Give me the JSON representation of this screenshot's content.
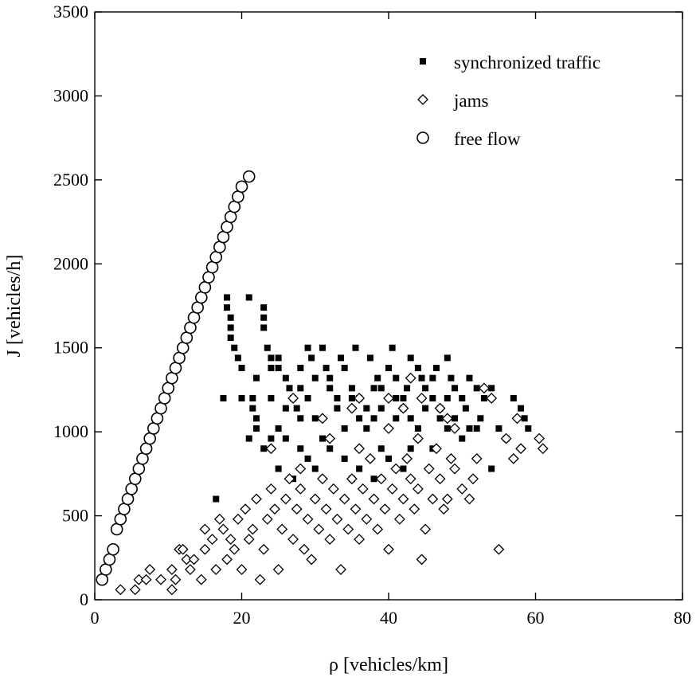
{
  "chart_data": {
    "type": "scatter",
    "title": "",
    "xlabel": "ρ [vehicles/km]",
    "ylabel": "J [vehicles/h]",
    "xlim": [
      0,
      80
    ],
    "ylim": [
      0,
      3500
    ],
    "x_ticks": [
      0,
      20,
      40,
      60,
      80
    ],
    "y_ticks": [
      0,
      500,
      1000,
      1500,
      2000,
      2500,
      3000,
      3500
    ],
    "grid": false,
    "legend_position": "top-right",
    "series": [
      {
        "name": "synchronized traffic",
        "marker": "filled-square",
        "points": [
          [
            16.5,
            600
          ],
          [
            17.5,
            1200
          ],
          [
            18,
            1800
          ],
          [
            18,
            1740
          ],
          [
            18.5,
            1680
          ],
          [
            18.5,
            1620
          ],
          [
            18.5,
            1560
          ],
          [
            19,
            1500
          ],
          [
            19.5,
            1440
          ],
          [
            20,
            1380
          ],
          [
            21,
            1800
          ],
          [
            21.5,
            1200
          ],
          [
            21.5,
            1140
          ],
          [
            22,
            1080
          ],
          [
            22,
            1320
          ],
          [
            23,
            1740
          ],
          [
            23,
            1680
          ],
          [
            23,
            1620
          ],
          [
            23.5,
            1500
          ],
          [
            24,
            1440
          ],
          [
            24,
            1380
          ],
          [
            25,
            1440
          ],
          [
            25,
            1380
          ],
          [
            26,
            1320
          ],
          [
            26.5,
            1260
          ],
          [
            27,
            1200
          ],
          [
            27.5,
            1140
          ],
          [
            28,
            1080
          ],
          [
            28,
            1380
          ],
          [
            29,
            1500
          ],
          [
            29.5,
            1440
          ],
          [
            30,
            1320
          ],
          [
            31,
            1500
          ],
          [
            31.5,
            1380
          ],
          [
            32,
            1260
          ],
          [
            33,
            1200
          ],
          [
            33.5,
            1440
          ],
          [
            34,
            1380
          ],
          [
            35,
            1260
          ],
          [
            35.5,
            1500
          ],
          [
            36,
            1200
          ],
          [
            37,
            1140
          ],
          [
            37.5,
            1440
          ],
          [
            38,
            1080
          ],
          [
            38.5,
            1320
          ],
          [
            39,
            1260
          ],
          [
            40,
            1380
          ],
          [
            40.5,
            1500
          ],
          [
            41,
            1200
          ],
          [
            42,
            1140
          ],
          [
            42.5,
            1260
          ],
          [
            43,
            1080
          ],
          [
            44,
            1380
          ],
          [
            44.5,
            1320
          ],
          [
            45,
            1260
          ],
          [
            46,
            1200
          ],
          [
            46.5,
            1380
          ],
          [
            47,
            1140
          ],
          [
            48,
            1440
          ],
          [
            48.5,
            1320
          ],
          [
            49,
            1080
          ],
          [
            50,
            1200
          ],
          [
            50.5,
            1140
          ],
          [
            51,
            1320
          ],
          [
            52,
            1260
          ],
          [
            52.5,
            1080
          ],
          [
            53,
            1200
          ],
          [
            54,
            1260
          ],
          [
            55,
            1020
          ],
          [
            56,
            960
          ],
          [
            57,
            1200
          ],
          [
            58,
            1140
          ],
          [
            58.5,
            1080
          ],
          [
            59,
            1020
          ],
          [
            21,
            960
          ],
          [
            22,
            1020
          ],
          [
            23,
            900
          ],
          [
            24,
            960
          ],
          [
            25,
            1020
          ],
          [
            26,
            960
          ],
          [
            28,
            900
          ],
          [
            29,
            840
          ],
          [
            30,
            780
          ],
          [
            31,
            960
          ],
          [
            32,
            900
          ],
          [
            34,
            840
          ],
          [
            36,
            780
          ],
          [
            38,
            720
          ],
          [
            40,
            840
          ],
          [
            42,
            780
          ],
          [
            44,
            960
          ],
          [
            46,
            900
          ],
          [
            48,
            1020
          ],
          [
            50,
            960
          ],
          [
            52,
            1020
          ],
          [
            54,
            780
          ],
          [
            26,
            1140
          ],
          [
            29,
            1200
          ],
          [
            33,
            1140
          ],
          [
            36,
            1080
          ],
          [
            39,
            1140
          ],
          [
            42,
            1200
          ],
          [
            45,
            1140
          ],
          [
            48,
            1200
          ],
          [
            30,
            1080
          ],
          [
            34,
            1020
          ],
          [
            37,
            1020
          ],
          [
            41,
            1080
          ],
          [
            44,
            1020
          ],
          [
            47,
            1080
          ],
          [
            51,
            1020
          ],
          [
            24,
            1200
          ],
          [
            28,
            1260
          ],
          [
            32,
            1320
          ],
          [
            35,
            1200
          ],
          [
            38,
            1260
          ],
          [
            41,
            1320
          ],
          [
            43,
            1440
          ],
          [
            46,
            1320
          ],
          [
            49,
            1260
          ],
          [
            25,
            780
          ],
          [
            27,
            720
          ],
          [
            35,
            720
          ],
          [
            39,
            900
          ],
          [
            43,
            900
          ],
          [
            20,
            1200
          ]
        ]
      },
      {
        "name": "jams",
        "marker": "open-diamond",
        "points": [
          [
            3.5,
            60
          ],
          [
            5.5,
            60
          ],
          [
            6,
            120
          ],
          [
            7,
            120
          ],
          [
            7.5,
            180
          ],
          [
            9,
            120
          ],
          [
            10.5,
            60
          ],
          [
            10.5,
            180
          ],
          [
            11,
            120
          ],
          [
            11.5,
            300
          ],
          [
            12,
            300
          ],
          [
            12.5,
            240
          ],
          [
            13,
            180
          ],
          [
            13.5,
            240
          ],
          [
            14.5,
            120
          ],
          [
            15,
            300
          ],
          [
            15,
            420
          ],
          [
            16,
            360
          ],
          [
            16.5,
            180
          ],
          [
            17,
            480
          ],
          [
            17.5,
            420
          ],
          [
            18,
            240
          ],
          [
            18.5,
            360
          ],
          [
            19,
            300
          ],
          [
            19.5,
            480
          ],
          [
            20,
            180
          ],
          [
            20.5,
            540
          ],
          [
            21,
            360
          ],
          [
            21.5,
            420
          ],
          [
            22,
            600
          ],
          [
            22.5,
            120
          ],
          [
            23,
            300
          ],
          [
            23.5,
            480
          ],
          [
            24,
            660
          ],
          [
            24.5,
            540
          ],
          [
            25,
            180
          ],
          [
            25.5,
            420
          ],
          [
            26,
            600
          ],
          [
            26.5,
            720
          ],
          [
            27,
            360
          ],
          [
            27.5,
            540
          ],
          [
            28,
            660
          ],
          [
            28.5,
            300
          ],
          [
            29,
            480
          ],
          [
            29.5,
            240
          ],
          [
            30,
            600
          ],
          [
            30.5,
            420
          ],
          [
            31,
            720
          ],
          [
            31.5,
            540
          ],
          [
            32,
            360
          ],
          [
            32.5,
            660
          ],
          [
            33,
            480
          ],
          [
            33.5,
            180
          ],
          [
            34,
            600
          ],
          [
            34.5,
            420
          ],
          [
            35,
            720
          ],
          [
            35.5,
            540
          ],
          [
            36,
            360
          ],
          [
            36.5,
            660
          ],
          [
            37,
            480
          ],
          [
            37.5,
            840
          ],
          [
            38,
            600
          ],
          [
            38.5,
            420
          ],
          [
            39,
            720
          ],
          [
            39.5,
            540
          ],
          [
            40,
            300
          ],
          [
            40.5,
            660
          ],
          [
            41,
            780
          ],
          [
            41.5,
            480
          ],
          [
            42,
            600
          ],
          [
            42.5,
            840
          ],
          [
            43,
            720
          ],
          [
            43.5,
            540
          ],
          [
            44,
            660
          ],
          [
            44.5,
            240
          ],
          [
            45,
            420
          ],
          [
            45.5,
            780
          ],
          [
            46,
            600
          ],
          [
            46.5,
            900
          ],
          [
            47,
            720
          ],
          [
            47.5,
            540
          ],
          [
            48,
            600
          ],
          [
            48.5,
            840
          ],
          [
            49,
            780
          ],
          [
            50,
            660
          ],
          [
            51,
            600
          ],
          [
            51.5,
            720
          ],
          [
            52,
            840
          ],
          [
            53,
            1260
          ],
          [
            54,
            1200
          ],
          [
            55,
            300
          ],
          [
            56,
            960
          ],
          [
            57,
            840
          ],
          [
            57.5,
            1080
          ],
          [
            58,
            900
          ],
          [
            60.5,
            960
          ],
          [
            61,
            900
          ],
          [
            27,
            1200
          ],
          [
            31,
            1080
          ],
          [
            35,
            1140
          ],
          [
            36,
            1200
          ],
          [
            40,
            1200
          ],
          [
            42,
            1140
          ],
          [
            43,
            1320
          ],
          [
            44.5,
            1200
          ],
          [
            47,
            1140
          ],
          [
            49,
            1020
          ],
          [
            24,
            900
          ],
          [
            28,
            780
          ],
          [
            32,
            960
          ],
          [
            36,
            900
          ],
          [
            40,
            1020
          ],
          [
            44,
            960
          ],
          [
            48,
            1080
          ]
        ]
      },
      {
        "name": "free flow",
        "marker": "open-circle",
        "points": [
          [
            1,
            120
          ],
          [
            1.5,
            180
          ],
          [
            2,
            240
          ],
          [
            2.5,
            300
          ],
          [
            3,
            420
          ],
          [
            3.5,
            480
          ],
          [
            4,
            540
          ],
          [
            4.5,
            600
          ],
          [
            5,
            660
          ],
          [
            5.5,
            720
          ],
          [
            6,
            780
          ],
          [
            6.5,
            840
          ],
          [
            7,
            900
          ],
          [
            7.5,
            960
          ],
          [
            8,
            1020
          ],
          [
            8.5,
            1080
          ],
          [
            9,
            1140
          ],
          [
            9.5,
            1200
          ],
          [
            10,
            1260
          ],
          [
            10.5,
            1320
          ],
          [
            11,
            1380
          ],
          [
            11.5,
            1440
          ],
          [
            12,
            1500
          ],
          [
            12.5,
            1560
          ],
          [
            13,
            1620
          ],
          [
            13.5,
            1680
          ],
          [
            14,
            1740
          ],
          [
            14.5,
            1800
          ],
          [
            15,
            1860
          ],
          [
            15.5,
            1920
          ],
          [
            16,
            1980
          ],
          [
            16.5,
            2040
          ],
          [
            17,
            2100
          ],
          [
            17.5,
            2160
          ],
          [
            18,
            2220
          ],
          [
            18.5,
            2280
          ],
          [
            19,
            2340
          ],
          [
            19.5,
            2400
          ],
          [
            20,
            2460
          ],
          [
            21,
            2520
          ]
        ]
      }
    ]
  }
}
